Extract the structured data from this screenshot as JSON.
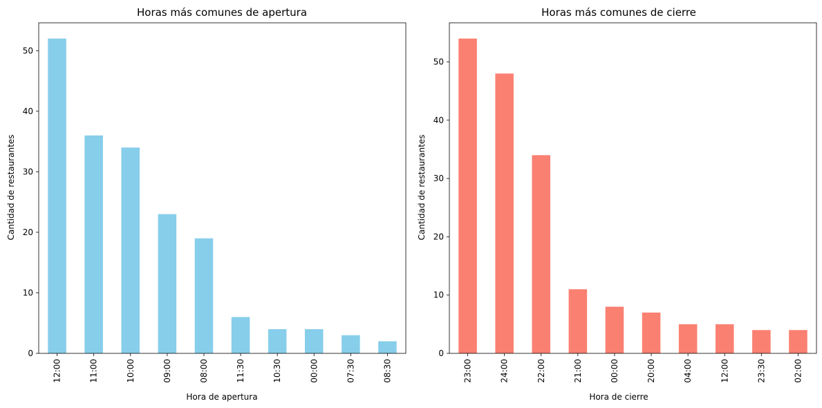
{
  "chart_data": [
    {
      "type": "bar",
      "title": "Horas más comunes de apertura",
      "xlabel": "Hora de apertura",
      "ylabel": "Cantidad de restaurantes",
      "categories": [
        "12:00",
        "11:00",
        "10:00",
        "09:00",
        "08:00",
        "11:30",
        "10:30",
        "00:00",
        "07:30",
        "08:30"
      ],
      "values": [
        52,
        36,
        34,
        23,
        19,
        6,
        4,
        4,
        3,
        2
      ],
      "ylim": [
        0,
        54.6
      ],
      "yticks": [
        0,
        10,
        20,
        30,
        40,
        50
      ],
      "color": "#87ceeb",
      "grid": false
    },
    {
      "type": "bar",
      "title": "Horas más comunes de cierre",
      "xlabel": "Hora de cierre",
      "ylabel": "Cantidad de restaurantes",
      "categories": [
        "23:00",
        "24:00",
        "22:00",
        "21:00",
        "00:00",
        "20:00",
        "04:00",
        "12:00",
        "23:30",
        "02:00"
      ],
      "values": [
        54,
        48,
        34,
        11,
        8,
        7,
        5,
        5,
        4,
        4
      ],
      "ylim": [
        0,
        56.7
      ],
      "yticks": [
        0,
        10,
        20,
        30,
        40,
        50
      ],
      "color": "#fa8072",
      "grid": false
    }
  ]
}
